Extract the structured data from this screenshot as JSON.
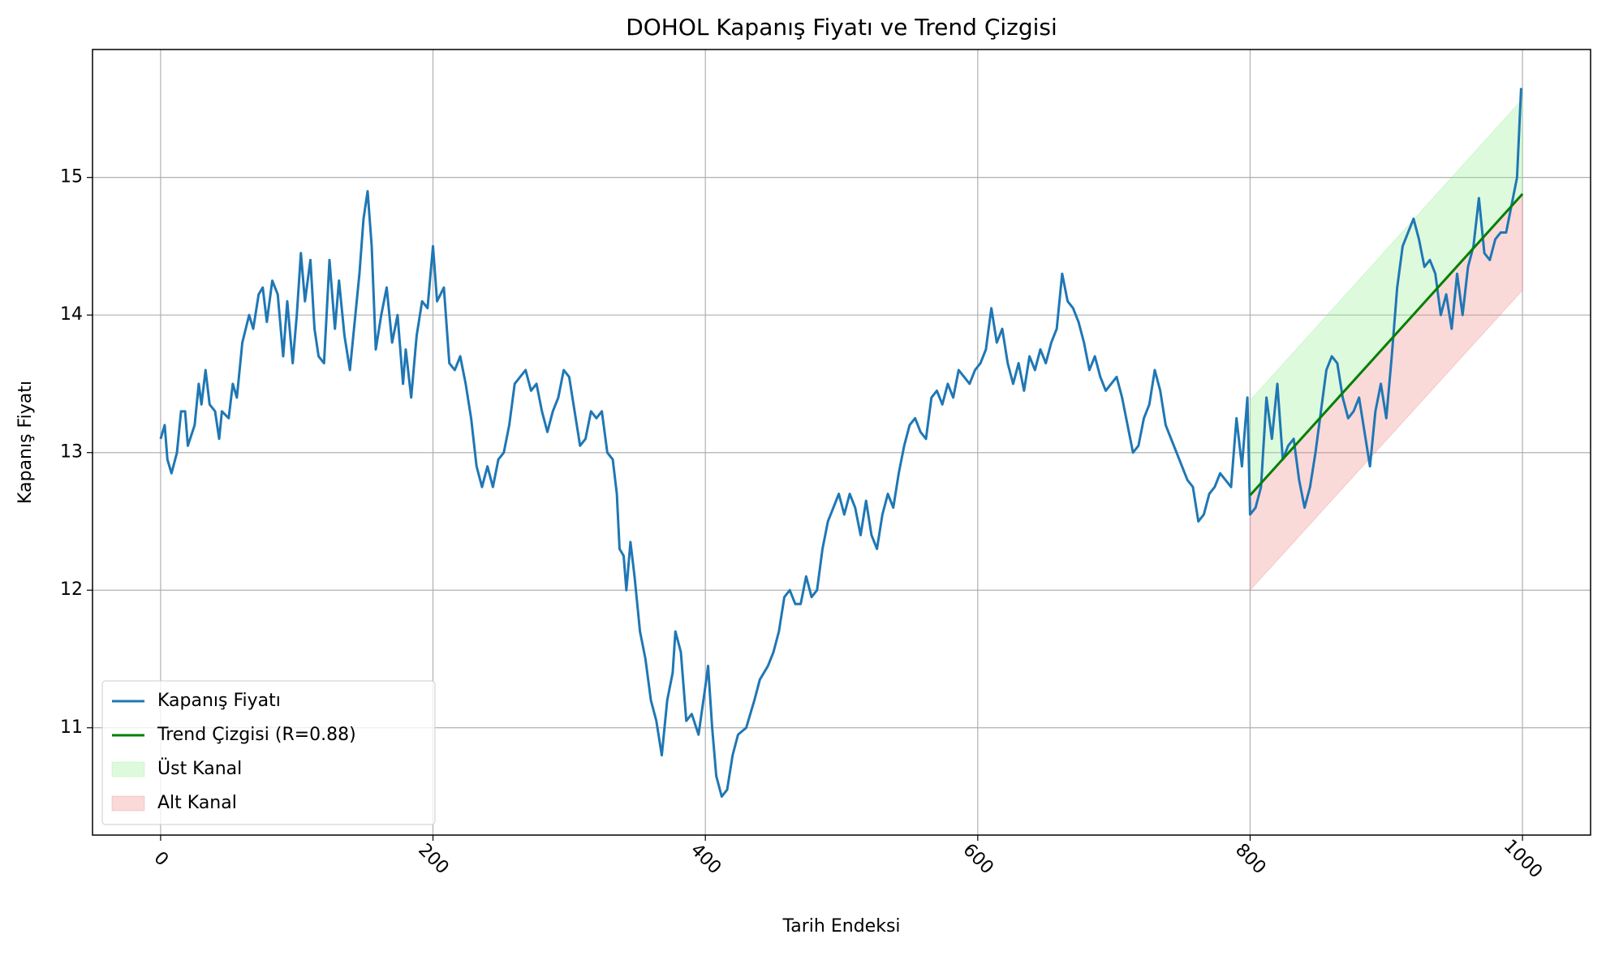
{
  "chart_data": {
    "type": "line",
    "title": "DOHOL Kapanış Fiyatı ve Trend Çizgisi",
    "x_label": "Tarih Endeksi",
    "y_label": "Kapanış Fiyatı",
    "xlim": [
      -50,
      1050
    ],
    "ylim": [
      10.22,
      15.93
    ],
    "xticks": [
      0,
      200,
      400,
      600,
      800,
      1000
    ],
    "yticks": [
      11,
      12,
      13,
      14,
      15
    ],
    "grid": true,
    "legend_loc": "lower left",
    "series": [
      {
        "name": "Kapanış Fiyatı",
        "color": "#1f77b4",
        "x": [
          0,
          3,
          5,
          8,
          12,
          15,
          18,
          20,
          25,
          28,
          30,
          33,
          36,
          40,
          43,
          45,
          50,
          53,
          56,
          60,
          65,
          68,
          72,
          75,
          78,
          82,
          86,
          90,
          93,
          97,
          100,
          103,
          106,
          110,
          113,
          116,
          120,
          124,
          128,
          131,
          135,
          139,
          142,
          146,
          149,
          152,
          155,
          158,
          162,
          166,
          170,
          174,
          178,
          180,
          184,
          188,
          192,
          196,
          200,
          203,
          208,
          212,
          216,
          220,
          224,
          228,
          232,
          236,
          240,
          244,
          248,
          252,
          256,
          260,
          264,
          268,
          272,
          276,
          280,
          284,
          288,
          292,
          296,
          300,
          304,
          308,
          312,
          316,
          320,
          324,
          328,
          332,
          335,
          337,
          340,
          342,
          345,
          348,
          352,
          356,
          360,
          364,
          368,
          372,
          376,
          378,
          382,
          386,
          390,
          395,
          400,
          402,
          405,
          408,
          412,
          416,
          420,
          424,
          430,
          436,
          440,
          446,
          450,
          454,
          458,
          462,
          466,
          470,
          474,
          478,
          482,
          486,
          490,
          494,
          498,
          502,
          506,
          510,
          514,
          518,
          522,
          526,
          530,
          534,
          538,
          542,
          546,
          550,
          554,
          558,
          562,
          566,
          570,
          574,
          578,
          582,
          586,
          590,
          594,
          598,
          602,
          606,
          610,
          614,
          618,
          622,
          626,
          630,
          634,
          638,
          642,
          646,
          650,
          654,
          658,
          662,
          666,
          670,
          674,
          678,
          682,
          686,
          690,
          694,
          698,
          702,
          706,
          710,
          714,
          718,
          722,
          726,
          730,
          734,
          738,
          742,
          746,
          750,
          754,
          758,
          762,
          766,
          770,
          774,
          778,
          782,
          786,
          790,
          794,
          798,
          800,
          804,
          808,
          812,
          816,
          820,
          824,
          828,
          832,
          836,
          840,
          844,
          848,
          852,
          856,
          860,
          864,
          868,
          872,
          876,
          880,
          884,
          888,
          892,
          896,
          900,
          904,
          908,
          912,
          916,
          920,
          924,
          928,
          932,
          936,
          940,
          944,
          948,
          952,
          956,
          960,
          964,
          968,
          972,
          976,
          980,
          984,
          988,
          992,
          996,
          999
        ],
        "values": [
          13.1,
          13.2,
          12.95,
          12.85,
          13.0,
          13.3,
          13.3,
          13.05,
          13.2,
          13.5,
          13.35,
          13.6,
          13.35,
          13.3,
          13.1,
          13.3,
          13.25,
          13.5,
          13.4,
          13.8,
          14.0,
          13.9,
          14.15,
          14.2,
          13.95,
          14.25,
          14.15,
          13.7,
          14.1,
          13.65,
          14.0,
          14.45,
          14.1,
          14.4,
          13.9,
          13.7,
          13.65,
          14.4,
          13.9,
          14.25,
          13.85,
          13.6,
          13.9,
          14.3,
          14.7,
          14.9,
          14.5,
          13.75,
          14.0,
          14.2,
          13.8,
          14.0,
          13.5,
          13.75,
          13.4,
          13.85,
          14.1,
          14.05,
          14.5,
          14.1,
          14.2,
          13.65,
          13.6,
          13.7,
          13.5,
          13.25,
          12.9,
          12.75,
          12.9,
          12.75,
          12.95,
          13.0,
          13.2,
          13.5,
          13.55,
          13.6,
          13.45,
          13.5,
          13.3,
          13.15,
          13.3,
          13.4,
          13.6,
          13.55,
          13.3,
          13.05,
          13.1,
          13.3,
          13.25,
          13.3,
          13.0,
          12.95,
          12.7,
          12.3,
          12.25,
          12.0,
          12.35,
          12.1,
          11.7,
          11.5,
          11.2,
          11.05,
          10.8,
          11.2,
          11.4,
          11.7,
          11.55,
          11.05,
          11.1,
          10.95,
          11.3,
          11.45,
          11.0,
          10.65,
          10.5,
          10.55,
          10.8,
          10.95,
          11.0,
          11.2,
          11.35,
          11.45,
          11.55,
          11.7,
          11.95,
          12.0,
          11.9,
          11.9,
          12.1,
          11.95,
          12.0,
          12.3,
          12.5,
          12.6,
          12.7,
          12.55,
          12.7,
          12.6,
          12.4,
          12.65,
          12.4,
          12.3,
          12.55,
          12.7,
          12.6,
          12.85,
          13.05,
          13.2,
          13.25,
          13.15,
          13.1,
          13.4,
          13.45,
          13.35,
          13.5,
          13.4,
          13.6,
          13.55,
          13.5,
          13.6,
          13.65,
          13.75,
          14.05,
          13.8,
          13.9,
          13.65,
          13.5,
          13.65,
          13.45,
          13.7,
          13.6,
          13.75,
          13.65,
          13.8,
          13.9,
          14.3,
          14.1,
          14.05,
          13.95,
          13.8,
          13.6,
          13.7,
          13.55,
          13.45,
          13.5,
          13.55,
          13.4,
          13.2,
          13.0,
          13.05,
          13.25,
          13.35,
          13.6,
          13.45,
          13.2,
          13.1,
          13.0,
          12.9,
          12.8,
          12.75,
          12.5,
          12.55,
          12.7,
          12.75,
          12.85,
          12.8,
          12.75,
          13.25,
          12.9,
          13.4,
          12.55,
          12.6,
          12.75,
          13.4,
          13.1,
          13.5,
          12.95,
          13.05,
          13.1,
          12.8,
          12.6,
          12.75,
          13.0,
          13.3,
          13.6,
          13.7,
          13.65,
          13.4,
          13.25,
          13.3,
          13.4,
          13.15,
          12.9,
          13.3,
          13.5,
          13.25,
          13.7,
          14.2,
          14.5,
          14.6,
          14.7,
          14.55,
          14.35,
          14.4,
          14.3,
          14.0,
          14.15,
          13.9,
          14.3,
          14.0,
          14.35,
          14.5,
          14.85,
          14.45,
          14.4,
          14.55,
          14.6,
          14.6,
          14.8,
          15.0,
          15.65
        ]
      },
      {
        "name": "Trend Çizgisi (R=0.88)",
        "color": "#008000",
        "x": [
          800,
          1000
        ],
        "values": [
          12.69,
          14.88
        ]
      }
    ],
    "fills": [
      {
        "name": "Üst Kanal",
        "color": "#90ee90",
        "x": [
          800,
          1000
        ],
        "lower": [
          12.69,
          14.88
        ],
        "upper": [
          13.38,
          15.57
        ]
      },
      {
        "name": "Alt Kanal",
        "color": "#f08080",
        "x": [
          800,
          1000
        ],
        "lower": [
          12.0,
          14.18
        ],
        "upper": [
          12.69,
          14.88
        ]
      }
    ]
  }
}
